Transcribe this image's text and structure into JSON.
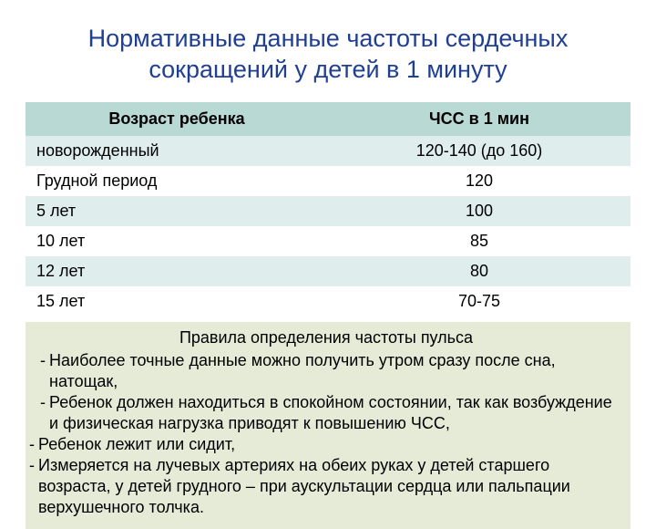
{
  "title": {
    "text": "Нормативные данные частоты сердечных сокращений у детей в 1 минуту",
    "color": "#1f3f94",
    "fontsize": 27
  },
  "table": {
    "type": "table",
    "header_bg": "#b9d9d4",
    "row_alt_bg": "#dfeeec",
    "row_bg": "#ffffff",
    "text_color": "#000000",
    "fontsize": 18,
    "columns": [
      "Возраст ребенка",
      "ЧСС в 1 мин"
    ],
    "col_widths": [
      "50%",
      "50%"
    ],
    "rows": [
      [
        "новорожденный",
        "120-140 (до 160)"
      ],
      [
        "Грудной период",
        "120"
      ],
      [
        "5 лет",
        "100"
      ],
      [
        "10 лет",
        "85"
      ],
      [
        "12 лет",
        "80"
      ],
      [
        "15 лет",
        "70-75"
      ]
    ]
  },
  "rules": {
    "bg": "#e6ebd8",
    "fontsize": 18,
    "title": "Правила определения частоты пульса",
    "items": [
      {
        "indent": "a",
        "text": "Наиболее  точные данные можно получить утром сразу после сна, натощак,"
      },
      {
        "indent": "a",
        "text": "Ребенок должен находиться в спокойном состоянии, так как возбуждение и физическая нагрузка приводят к повышению ЧСС,"
      },
      {
        "indent": "b",
        "text": "Ребенок лежит или сидит,"
      },
      {
        "indent": "b",
        "text": "Измеряется на лучевых артериях на обеих руках у детей старшего возраста, у детей грудного – при аускультации сердца или пальпации верхушечного толчка."
      }
    ]
  }
}
